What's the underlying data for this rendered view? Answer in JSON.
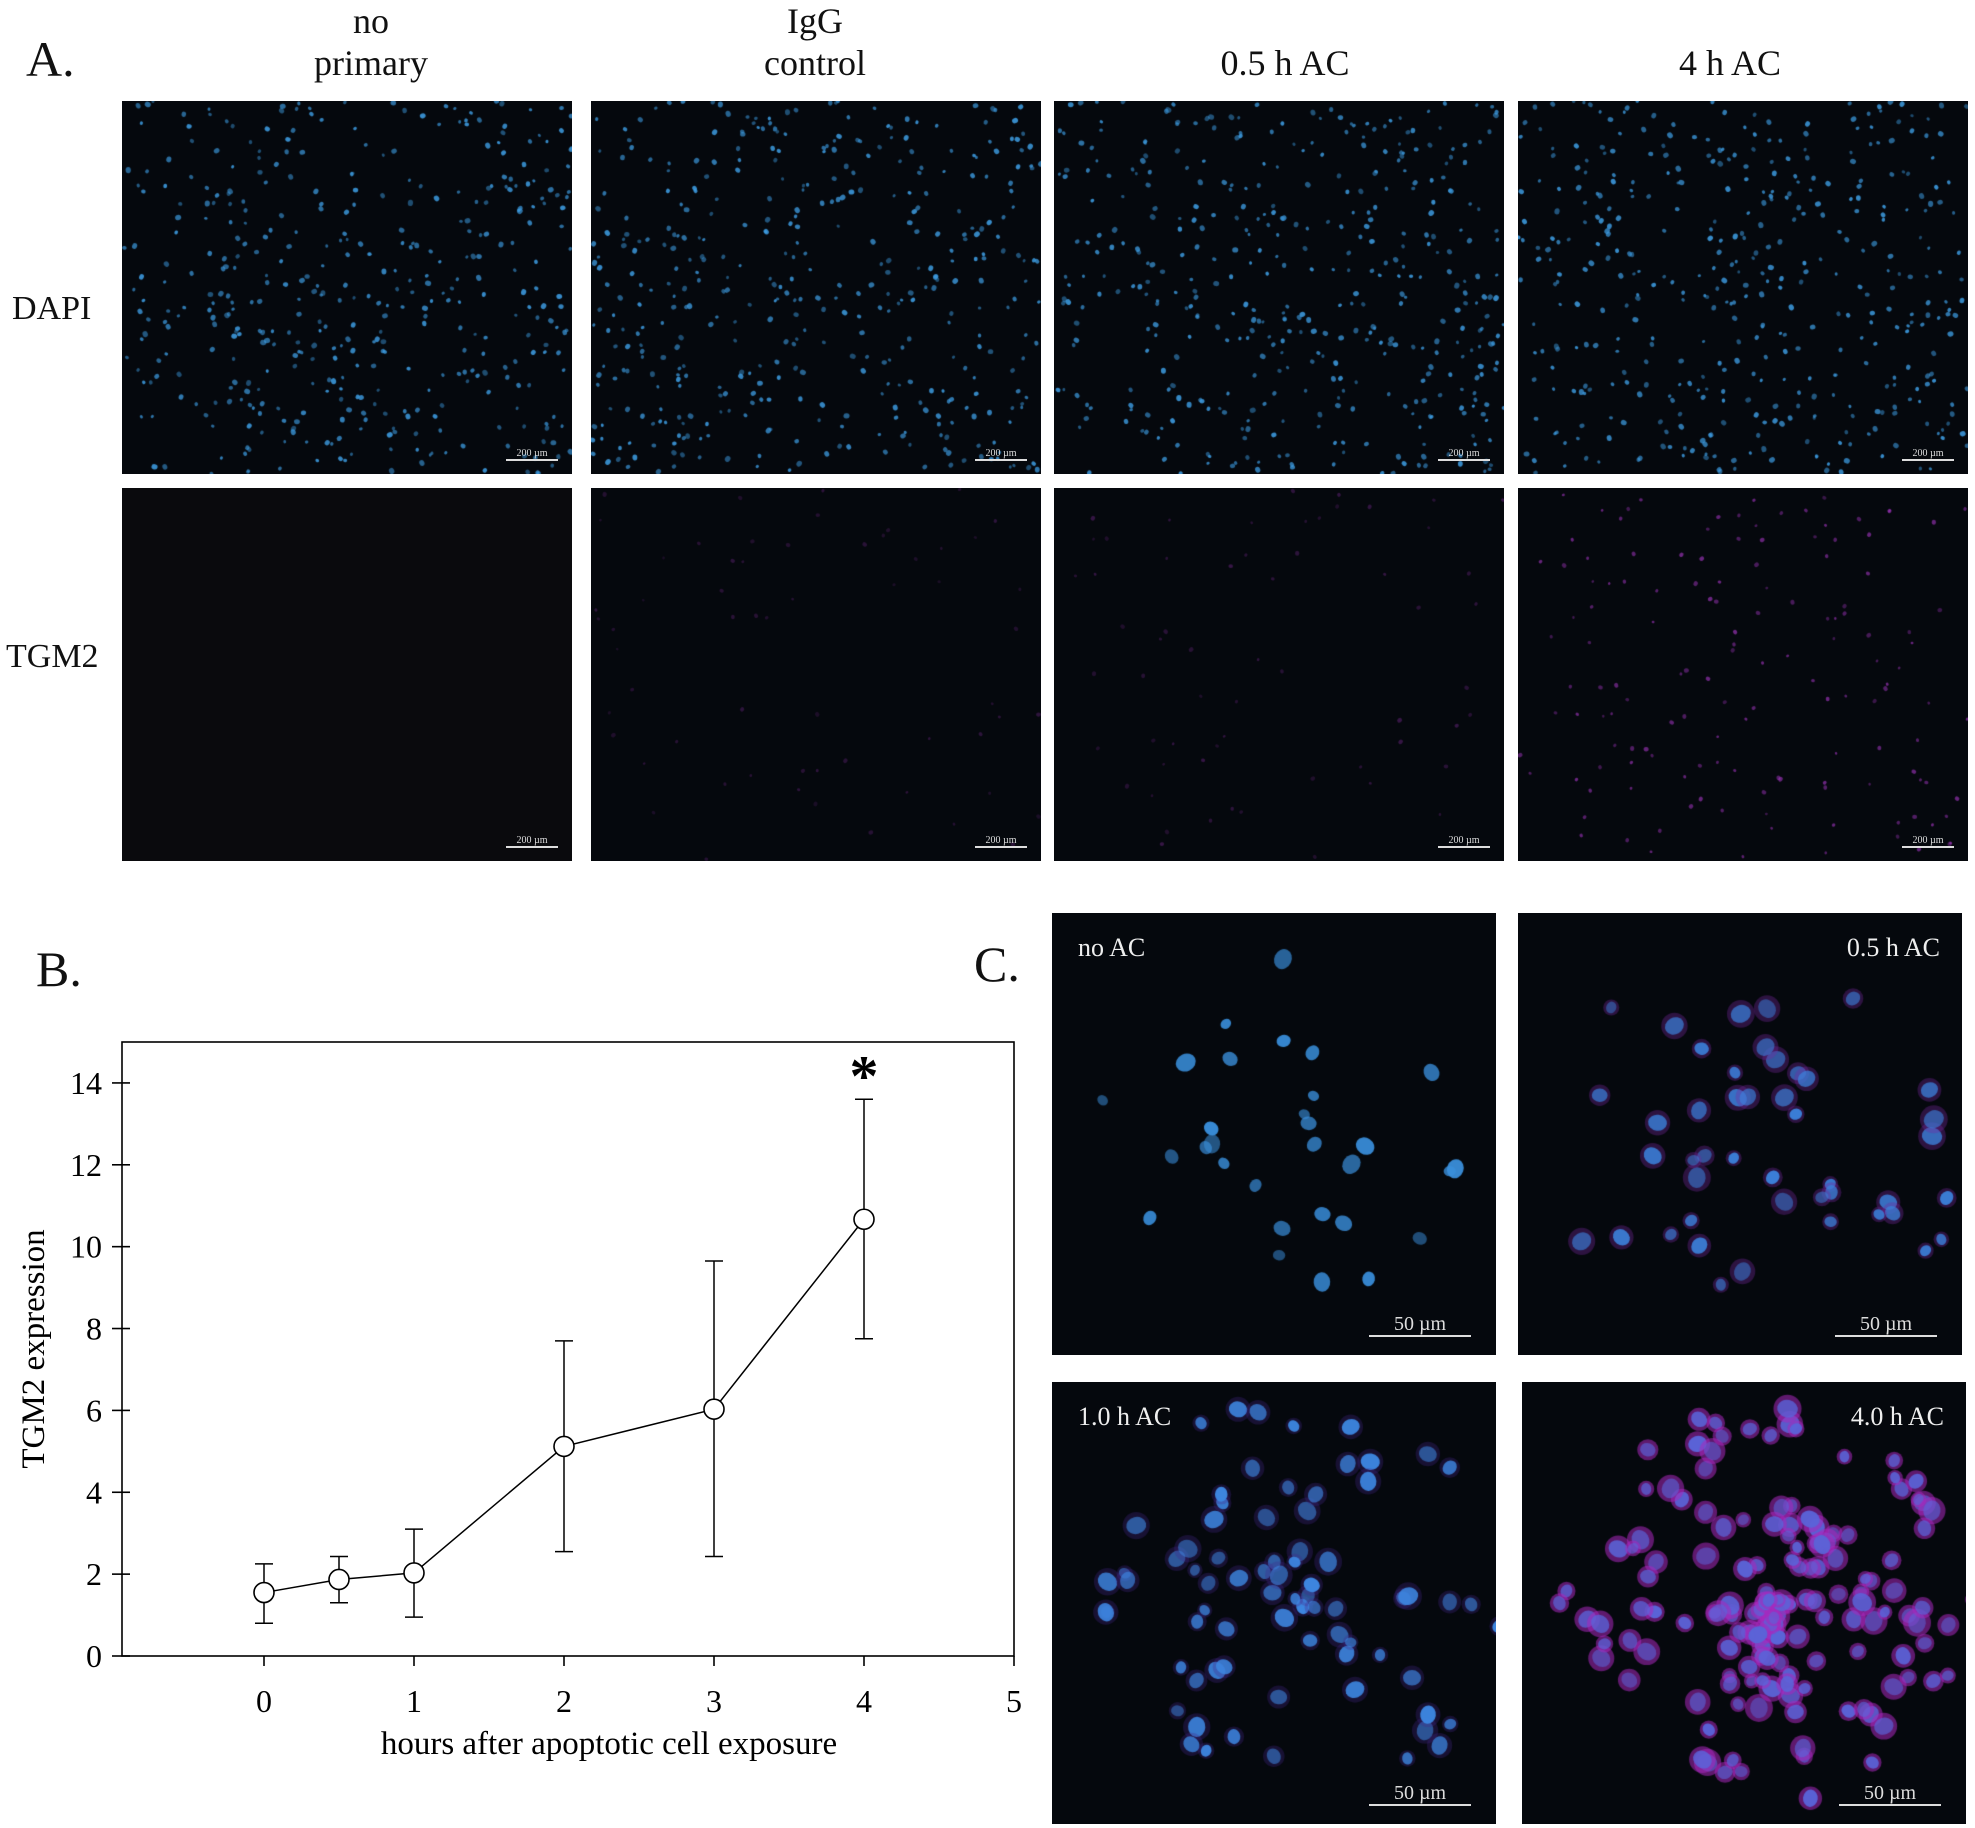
{
  "panel_a": {
    "letter": "A.",
    "columns": [
      {
        "line1": "no",
        "line2": "primary"
      },
      {
        "line1": "IgG",
        "line2": "control"
      },
      {
        "line1": "",
        "line2": "0.5 h AC"
      },
      {
        "line1": "",
        "line2": "4 h AC"
      }
    ],
    "rows": [
      "DAPI",
      "TGM2"
    ],
    "scale_bar": "200 µm"
  },
  "panel_b": {
    "letter": "B."
  },
  "panel_c": {
    "letter": "C.",
    "images": [
      "no AC",
      "0.5 h AC",
      "1.0 h AC",
      "4.0 h AC"
    ],
    "scale_bar": "50 µm"
  },
  "colors": {
    "dapi": "#3d9be0",
    "tgm2": "#b03ad0",
    "background": "#05080d"
  },
  "chart_data": {
    "type": "line",
    "xlabel": "hours after apoptotic cell exposure",
    "ylabel": "TGM2 expression",
    "x": [
      0,
      0.5,
      1,
      2,
      3,
      4
    ],
    "y": [
      1.55,
      1.87,
      2.03,
      5.12,
      6.03,
      10.67
    ],
    "error_upper": [
      2.25,
      2.43,
      3.1,
      7.7,
      9.65,
      13.6
    ],
    "error_lower": [
      0.8,
      1.3,
      0.95,
      2.55,
      2.43,
      7.75
    ],
    "xlim": [
      -1,
      5
    ],
    "ylim": [
      0,
      15
    ],
    "xticks": [
      0,
      1,
      2,
      3,
      4,
      5
    ],
    "yticks": [
      0,
      2,
      4,
      6,
      8,
      10,
      12,
      14
    ],
    "annotations": [
      {
        "x": 4,
        "text": "*"
      }
    ],
    "grid": false,
    "marker": "open-circle"
  }
}
